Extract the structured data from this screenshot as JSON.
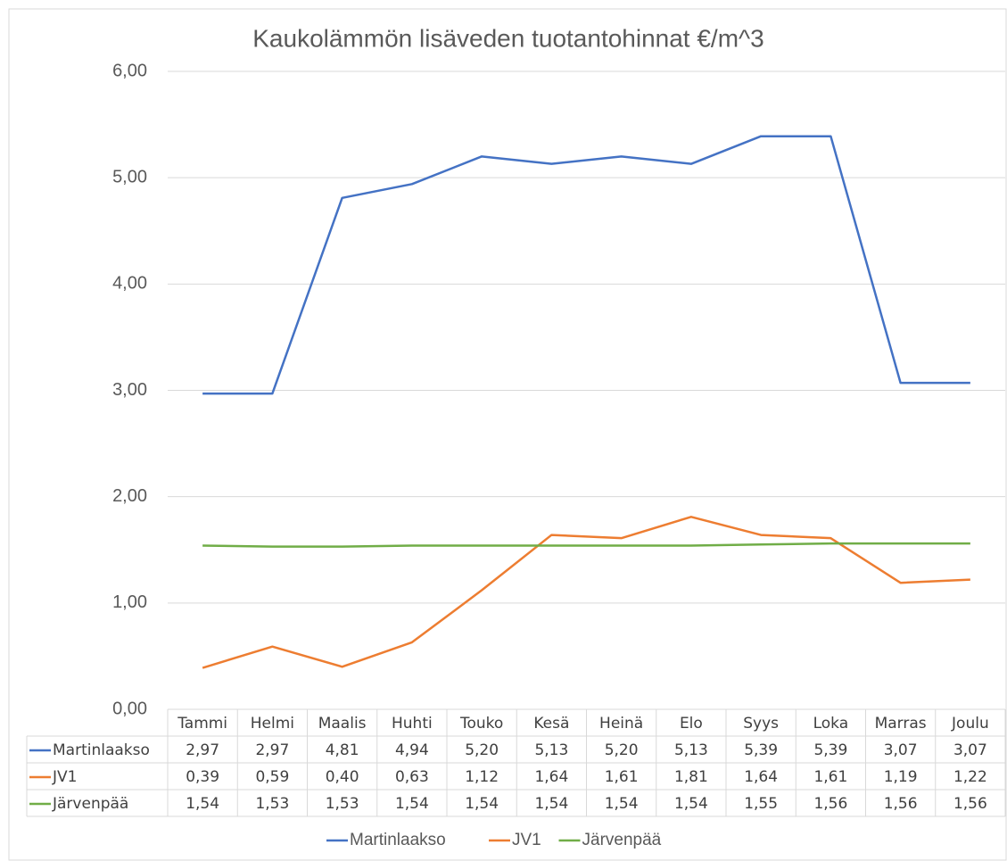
{
  "chart_data": {
    "type": "line",
    "title": "Kaukolämmön lisäveden tuotantohinnat €/m^3",
    "categories": [
      "Tammi",
      "Helmi",
      "Maalis",
      "Huhti",
      "Touko",
      "Kesä",
      "Heinä",
      "Elo",
      "Syys",
      "Loka",
      "Marras",
      "Joulu"
    ],
    "series": [
      {
        "name": "Martinlaakso",
        "color": "#4472c4",
        "values": [
          2.97,
          2.97,
          4.81,
          4.94,
          5.2,
          5.13,
          5.2,
          5.13,
          5.39,
          5.39,
          3.07,
          3.07
        ],
        "value_labels": [
          "2,97",
          "2,97",
          "4,81",
          "4,94",
          "5,20",
          "5,13",
          "5,20",
          "5,13",
          "5,39",
          "5,39",
          "3,07",
          "3,07"
        ]
      },
      {
        "name": "JV1",
        "color": "#ed7d31",
        "values": [
          0.39,
          0.59,
          0.4,
          0.63,
          1.12,
          1.64,
          1.61,
          1.81,
          1.64,
          1.61,
          1.19,
          1.22
        ],
        "value_labels": [
          "0,39",
          "0,59",
          "0,40",
          "0,63",
          "1,12",
          "1,64",
          "1,61",
          "1,81",
          "1,64",
          "1,61",
          "1,19",
          "1,22"
        ]
      },
      {
        "name": "Järvenpää",
        "color": "#70ad47",
        "values": [
          1.54,
          1.53,
          1.53,
          1.54,
          1.54,
          1.54,
          1.54,
          1.54,
          1.55,
          1.56,
          1.56,
          1.56
        ],
        "value_labels": [
          "1,54",
          "1,53",
          "1,53",
          "1,54",
          "1,54",
          "1,54",
          "1,54",
          "1,54",
          "1,55",
          "1,56",
          "1,56",
          "1,56"
        ]
      }
    ],
    "ylim": [
      0,
      6
    ],
    "yticks": [
      {
        "value": 0,
        "label": "0,00"
      },
      {
        "value": 1,
        "label": "1,00"
      },
      {
        "value": 2,
        "label": "2,00"
      },
      {
        "value": 3,
        "label": "3,00"
      },
      {
        "value": 4,
        "label": "4,00"
      },
      {
        "value": 5,
        "label": "5,00"
      },
      {
        "value": 6,
        "label": "6,00"
      }
    ],
    "grid": true,
    "legend": "bottom"
  }
}
